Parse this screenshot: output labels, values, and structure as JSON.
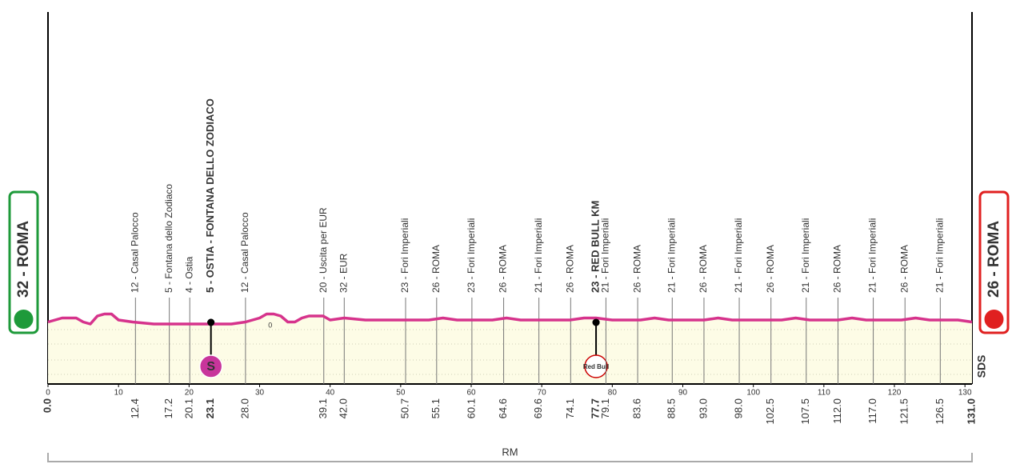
{
  "chart_data": {
    "type": "profile",
    "xlim": [
      0,
      131
    ],
    "ylim": [
      0,
      186
    ],
    "xticks": [
      0,
      10,
      20,
      30,
      40,
      50,
      60,
      70,
      80,
      90,
      100,
      110,
      120,
      130
    ],
    "color": "#d6338c",
    "start": {
      "km": {
        "value": 0,
        "label": "0.0"
      },
      "label": "32 - ROMA",
      "color": "#1e9a3a"
    },
    "finish": {
      "km": {
        "value": 131,
        "label": "131.0"
      },
      "label": "26 - ROMA",
      "color": "#e02020"
    },
    "x": [
      0,
      2,
      4,
      5,
      6,
      7,
      8,
      9,
      10,
      12,
      15,
      18,
      20,
      23.1,
      26,
      28,
      30,
      31,
      32,
      33,
      34,
      35,
      36,
      37,
      39,
      40,
      42,
      45,
      48,
      50,
      52,
      54,
      56,
      58,
      61,
      63,
      65,
      67,
      70,
      72,
      74,
      76,
      77.7,
      80,
      82,
      84,
      86,
      88,
      91,
      93,
      95,
      97,
      100,
      102,
      104,
      106,
      108,
      110,
      112,
      114,
      116,
      118,
      121,
      123,
      125,
      127,
      129,
      131
    ],
    "values": [
      31,
      33,
      33,
      31,
      30,
      34,
      35,
      35,
      32,
      31,
      30,
      30,
      30,
      30,
      30,
      31,
      33,
      35,
      35,
      34,
      31,
      31,
      33,
      34,
      34,
      32,
      33,
      32,
      32,
      32,
      32,
      32,
      33,
      32,
      32,
      32,
      33,
      32,
      32,
      32,
      32,
      33,
      33,
      32,
      32,
      32,
      33,
      32,
      32,
      32,
      33,
      32,
      32,
      32,
      32,
      33,
      32,
      32,
      32,
      33,
      32,
      32,
      32,
      33,
      32,
      32,
      32,
      31
    ],
    "waypoints": [
      {
        "km": 12.4,
        "label": "12 - Casal Palocco"
      },
      {
        "km": 17.2,
        "label": "5 - Fontana dello Zodiaco"
      },
      {
        "km": 20.1,
        "label": "4 - Ostia"
      },
      {
        "km": 23.1,
        "label": "5 - OSTIA - FONTANA DELLO ZODIACO",
        "bold": true,
        "icon": "S",
        "icon_color": "#c8359b"
      },
      {
        "km": {
          "value": 28,
          "label": "28.0"
        },
        "label": "12 - Casal Palocco"
      },
      {
        "km": 39.1,
        "label": "20 - Uscita per EUR"
      },
      {
        "km": {
          "value": 42,
          "label": "42.0"
        },
        "label": "32 - EUR"
      },
      {
        "km": 50.7,
        "label": "23 - Fori Imperiali"
      },
      {
        "km": 55.1,
        "label": "26 - ROMA"
      },
      {
        "km": 60.1,
        "label": "23 - Fori Imperiali"
      },
      {
        "km": 64.6,
        "label": "26 - ROMA"
      },
      {
        "km": 69.6,
        "label": "21 - Fori Imperiali"
      },
      {
        "km": 74.1,
        "label": "26 - ROMA"
      },
      {
        "km": 77.7,
        "label": "23 - RED BULL KM",
        "bold": true,
        "icon": "Red Bull",
        "icon_color": "#ffffff"
      },
      {
        "km": 79.1,
        "label": "21 - Fori Imperiali"
      },
      {
        "km": 83.6,
        "label": "26 - ROMA"
      },
      {
        "km": 88.5,
        "label": "21 - Fori Imperiali"
      },
      {
        "km": {
          "value": 93,
          "label": "93.0"
        },
        "label": "26 - ROMA"
      },
      {
        "km": {
          "value": 98,
          "label": "98.0"
        },
        "label": "21 - Fori Imperiali"
      },
      {
        "km": 102.5,
        "label": "26 - ROMA"
      },
      {
        "km": 107.5,
        "label": "21 - Fori Imperiali"
      },
      {
        "km": {
          "value": 112,
          "label": "112.0"
        },
        "label": "26 - ROMA"
      },
      {
        "km": {
          "value": 117,
          "label": "117.0"
        },
        "label": "21 - Fori Imperiali"
      },
      {
        "km": 121.5,
        "label": "26 - ROMA"
      },
      {
        "km": 126.5,
        "label": "21 - Fori Imperiali"
      }
    ],
    "marker": {
      "km": 31.5,
      "label": "0"
    },
    "province": "RM",
    "logo": "SDS"
  }
}
